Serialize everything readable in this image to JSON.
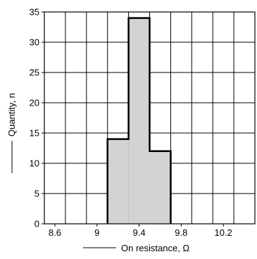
{
  "chart_data": {
    "type": "bar",
    "title": "",
    "xlabel": "On resistance, Ω",
    "ylabel": "Quantity, n",
    "xlim": [
      8.5,
      10.5
    ],
    "ylim": [
      0,
      35
    ],
    "x_ticks": [
      8.6,
      9,
      9.4,
      9.8,
      10.2
    ],
    "x_tick_labels": [
      "8.6",
      "9",
      "9.4",
      "9.8",
      "10.2"
    ],
    "y_ticks": [
      0,
      5,
      10,
      15,
      20,
      25,
      30,
      35
    ],
    "y_tick_labels": [
      "0",
      "5",
      "10",
      "15",
      "20",
      "25",
      "30",
      "35"
    ],
    "x_grid_step": 0.2,
    "grid": true,
    "bins": [
      {
        "x0": 9.1,
        "x1": 9.3,
        "value": 14
      },
      {
        "x0": 9.3,
        "x1": 9.5,
        "value": 34
      },
      {
        "x0": 9.5,
        "x1": 9.7,
        "value": 12
      }
    ],
    "colors": {
      "bar_fill": "#d3d3d3",
      "outline": "#000000",
      "grid": "#000000"
    }
  }
}
